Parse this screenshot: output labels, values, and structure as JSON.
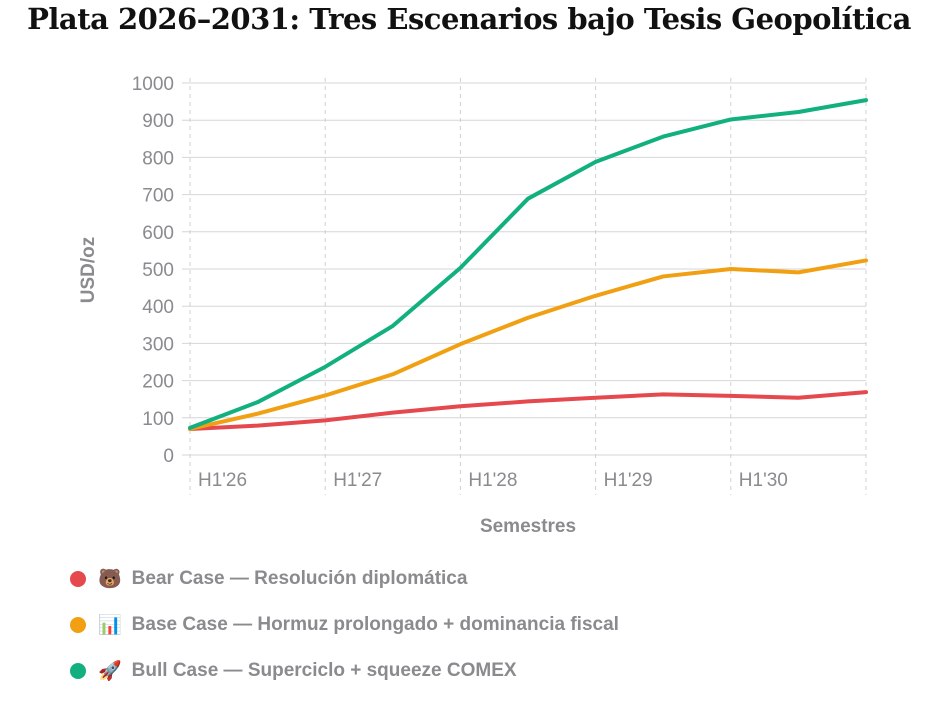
{
  "chart_data": {
    "type": "line",
    "title": "Plata 2026–2031: Tres Escenarios bajo Tesis Geopolítica",
    "xlabel": "Semestres",
    "ylabel": "USD/oz",
    "ylim": [
      0,
      1000
    ],
    "yticks": [
      "0",
      "100",
      "200",
      "300",
      "400",
      "500",
      "600",
      "700",
      "800",
      "900",
      "1000"
    ],
    "categories": [
      "H1'26",
      "H2'26",
      "H1'27",
      "H2'27",
      "H1'28",
      "H2'28",
      "H1'29",
      "H2'29",
      "H1'30",
      "H2'30",
      "H1'31"
    ],
    "xtick_labels": [
      "H1'26",
      "H1'27",
      "H1'28",
      "H1'29",
      "H1'30"
    ],
    "grid": true,
    "legend_position": "bottom-left",
    "series": [
      {
        "name": "Bear Case — Resolución diplomática",
        "emoji": "🐻",
        "color": "#e5484d",
        "values": [
          70,
          79,
          93,
          114,
          131,
          144,
          154,
          163,
          159,
          154,
          169
        ]
      },
      {
        "name": "Base Case — Hormuz prolongado + dominancia fiscal",
        "emoji": "📊",
        "color": "#f0a012",
        "values": [
          70,
          111,
          160,
          217,
          298,
          369,
          428,
          480,
          500,
          491,
          523
        ]
      },
      {
        "name": "Bull Case — Superciclo + squeeze COMEX",
        "emoji": "🚀",
        "color": "#12b07e",
        "values": [
          73,
          142,
          237,
          347,
          503,
          689,
          788,
          856,
          902,
          922,
          954
        ]
      }
    ]
  }
}
